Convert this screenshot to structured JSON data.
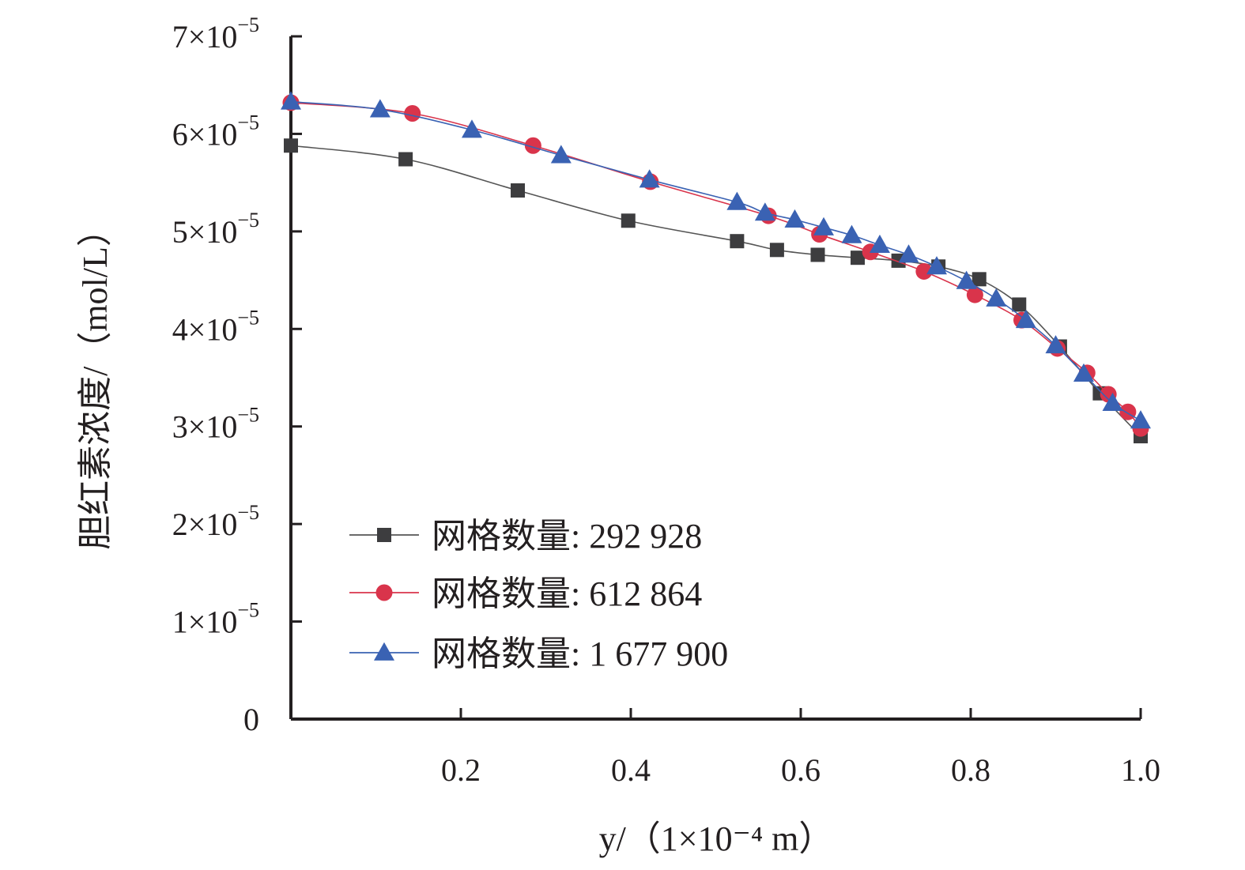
{
  "chart_data": {
    "type": "line",
    "title": "",
    "xlabel": "y/（1×10⁻⁴ m）",
    "ylabel": "胆红素浓度/（mol/L）",
    "xlim": [
      0,
      1.0
    ],
    "ylim": [
      0,
      7e-05
    ],
    "x_ticks": [
      {
        "value": 0.2,
        "label": "0.2"
      },
      {
        "value": 0.4,
        "label": "0.4"
      },
      {
        "value": 0.6,
        "label": "0.6"
      },
      {
        "value": 0.8,
        "label": "0.8"
      },
      {
        "value": 1.0,
        "label": "1.0"
      }
    ],
    "y_ticks": [
      {
        "value": 0,
        "mant": "0",
        "exp": ""
      },
      {
        "value": 1e-05,
        "mant": "1×10",
        "exp": "−5"
      },
      {
        "value": 2e-05,
        "mant": "2×10",
        "exp": "−5"
      },
      {
        "value": 3e-05,
        "mant": "3×10",
        "exp": "−5"
      },
      {
        "value": 4e-05,
        "mant": "4×10",
        "exp": "−5"
      },
      {
        "value": 5e-05,
        "mant": "5×10",
        "exp": "−5"
      },
      {
        "value": 6e-05,
        "mant": "6×10",
        "exp": "−5"
      },
      {
        "value": 7e-05,
        "mant": "7×10",
        "exp": "−5"
      }
    ],
    "grid": false,
    "legend_position": "lower-left",
    "series": [
      {
        "name": "网格数量: 292 928",
        "marker": "square",
        "color": "#3d3d3f",
        "line_color": "#555555",
        "points": [
          [
            0.0,
            5.88e-05
          ],
          [
            0.135,
            5.74e-05
          ],
          [
            0.267,
            5.42e-05
          ],
          [
            0.397,
            5.11e-05
          ],
          [
            0.525,
            4.9e-05
          ],
          [
            0.572,
            4.81e-05
          ],
          [
            0.62,
            4.76e-05
          ],
          [
            0.667,
            4.73e-05
          ],
          [
            0.715,
            4.7e-05
          ],
          [
            0.762,
            4.64e-05
          ],
          [
            0.81,
            4.51e-05
          ],
          [
            0.857,
            4.25e-05
          ],
          [
            0.905,
            3.82e-05
          ],
          [
            0.952,
            3.34e-05
          ],
          [
            1.0,
            2.9e-05
          ]
        ]
      },
      {
        "name": "网格数量: 612 864",
        "marker": "circle",
        "color": "#d9344b",
        "line_color": "#d9344b",
        "points": [
          [
            0.0,
            6.32e-05
          ],
          [
            0.143,
            6.21e-05
          ],
          [
            0.285,
            5.88e-05
          ],
          [
            0.423,
            5.51e-05
          ],
          [
            0.562,
            5.16e-05
          ],
          [
            0.622,
            4.97e-05
          ],
          [
            0.682,
            4.79e-05
          ],
          [
            0.745,
            4.59e-05
          ],
          [
            0.805,
            4.35e-05
          ],
          [
            0.86,
            4.09e-05
          ],
          [
            0.902,
            3.8e-05
          ],
          [
            0.937,
            3.55e-05
          ],
          [
            0.962,
            3.33e-05
          ],
          [
            0.985,
            3.15e-05
          ],
          [
            1.0,
            2.98e-05
          ]
        ]
      },
      {
        "name": "网格数量: 1 677 900",
        "marker": "triangle",
        "color": "#3a62b3",
        "line_color": "#3a62b3",
        "points": [
          [
            0.0,
            6.33e-05
          ],
          [
            0.105,
            6.25e-05
          ],
          [
            0.213,
            6.04e-05
          ],
          [
            0.318,
            5.78e-05
          ],
          [
            0.422,
            5.53e-05
          ],
          [
            0.525,
            5.3e-05
          ],
          [
            0.558,
            5.19e-05
          ],
          [
            0.593,
            5.12e-05
          ],
          [
            0.627,
            5.04e-05
          ],
          [
            0.66,
            4.96e-05
          ],
          [
            0.693,
            4.86e-05
          ],
          [
            0.727,
            4.76e-05
          ],
          [
            0.76,
            4.64e-05
          ],
          [
            0.795,
            4.49e-05
          ],
          [
            0.83,
            4.31e-05
          ],
          [
            0.865,
            4.09e-05
          ],
          [
            0.9,
            3.83e-05
          ],
          [
            0.933,
            3.54e-05
          ],
          [
            0.967,
            3.24e-05
          ],
          [
            1.0,
            3.06e-05
          ]
        ]
      }
    ]
  }
}
